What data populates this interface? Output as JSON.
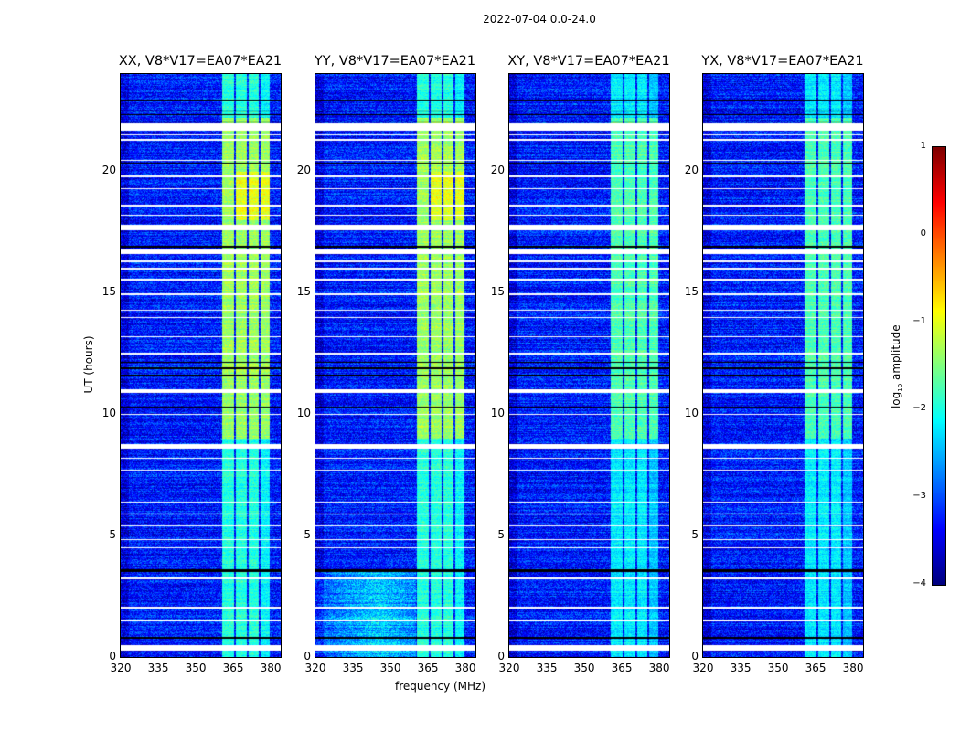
{
  "chart_data": {
    "type": "heatmap",
    "title": "2022-07-04 0.0-24.0",
    "xlabel": "frequency (MHz)",
    "ylabel": "UT (hours)",
    "xlim": [
      320,
      384
    ],
    "ylim": [
      0,
      24
    ],
    "xticks": [
      "320",
      "335",
      "350",
      "365",
      "380"
    ],
    "yticks": [
      "0",
      "5",
      "10",
      "15",
      "20"
    ],
    "panels": [
      {
        "title": "XX, V8*V17=EA07*EA21",
        "pol": "XX"
      },
      {
        "title": "YY, V8*V17=EA07*EA21",
        "pol": "YY"
      },
      {
        "title": "XY, V8*V17=EA07*EA21",
        "pol": "XY"
      },
      {
        "title": "YX, V8*V17=EA07*EA21",
        "pol": "YX"
      }
    ],
    "colorbar": {
      "label": "log10 amplitude",
      "label_main": "log",
      "label_sub": "10",
      "label_rest": " amplitude",
      "range": [
        -4,
        1
      ],
      "ticks": [
        "1",
        "0",
        "−1",
        "−2",
        "−3",
        "−4"
      ],
      "colormap": "jet"
    },
    "rfi_bands_mhz": [
      [
        360.5,
        365.3
      ],
      [
        365.8,
        370.3
      ],
      [
        371,
        375
      ],
      [
        375.6,
        379.6
      ]
    ],
    "flagged_ut_white": [
      [
        0.3,
        0.5
      ],
      [
        1.48,
        1.55
      ],
      [
        2.02,
        2.08
      ],
      [
        3.22,
        3.3
      ],
      [
        4.48,
        4.53
      ],
      [
        4.83,
        4.88
      ],
      [
        5.38,
        5.43
      ],
      [
        5.88,
        5.93
      ],
      [
        6.38,
        6.43
      ],
      [
        7.68,
        7.73
      ],
      [
        8.18,
        8.23
      ],
      [
        8.6,
        8.8
      ],
      [
        9.98,
        10.03
      ],
      [
        10.9,
        11.05
      ],
      [
        12.48,
        12.53
      ],
      [
        13.18,
        13.23
      ],
      [
        13.98,
        14.03
      ],
      [
        14.28,
        14.33
      ],
      [
        14.93,
        14.98
      ],
      [
        15.53,
        15.58
      ],
      [
        15.98,
        16.03
      ],
      [
        16.28,
        16.33
      ],
      [
        16.6,
        16.8
      ],
      [
        17.6,
        17.8
      ],
      [
        18.18,
        18.23
      ],
      [
        18.58,
        18.63
      ],
      [
        19.28,
        19.33
      ],
      [
        19.78,
        19.83
      ],
      [
        20.43,
        20.48
      ],
      [
        21.28,
        21.33
      ],
      [
        21.48,
        21.53
      ],
      [
        21.7,
        22.0
      ]
    ],
    "flagged_ut_black": [
      [
        0.78,
        0.86
      ],
      [
        3.52,
        3.64
      ],
      [
        10.27,
        10.34
      ],
      [
        11.56,
        11.64
      ],
      [
        11.88,
        11.93
      ],
      [
        12.13,
        12.18
      ],
      [
        16.88,
        16.93
      ],
      [
        20.32,
        20.38
      ],
      [
        22.03,
        22.08
      ],
      [
        22.33,
        22.38
      ],
      [
        22.48,
        22.53
      ],
      [
        22.93,
        22.98
      ]
    ]
  }
}
